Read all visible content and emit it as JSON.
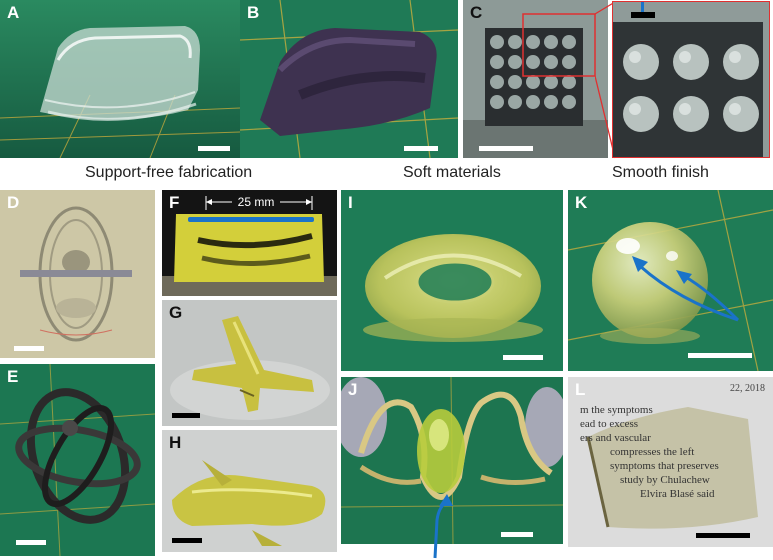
{
  "captions": {
    "support_free": "Support-free fabrication",
    "soft_materials": "Soft materials",
    "smooth_finish": "Smooth finish"
  },
  "panels": {
    "A": "A",
    "B": "B",
    "C": "C",
    "D": "D",
    "E": "E",
    "F": "F",
    "G": "G",
    "H": "H",
    "I": "I",
    "J": "J",
    "K": "K",
    "L": "L"
  },
  "dimension_label": "25 mm",
  "newspaper": {
    "lines": [
      "m the symptoms",
      "ead to excess",
      "ers and vascular",
      "compresses the left",
      "symptoms that preserves",
      "study by Chulachew",
      "Elvira Blasé said"
    ],
    "date_text": "22, 2018"
  },
  "colors": {
    "mat_green": "#1d7a55",
    "resin_yellow": "#d8d77a",
    "arrow_blue": "#1a73c9",
    "inset_border": "#e03030"
  }
}
